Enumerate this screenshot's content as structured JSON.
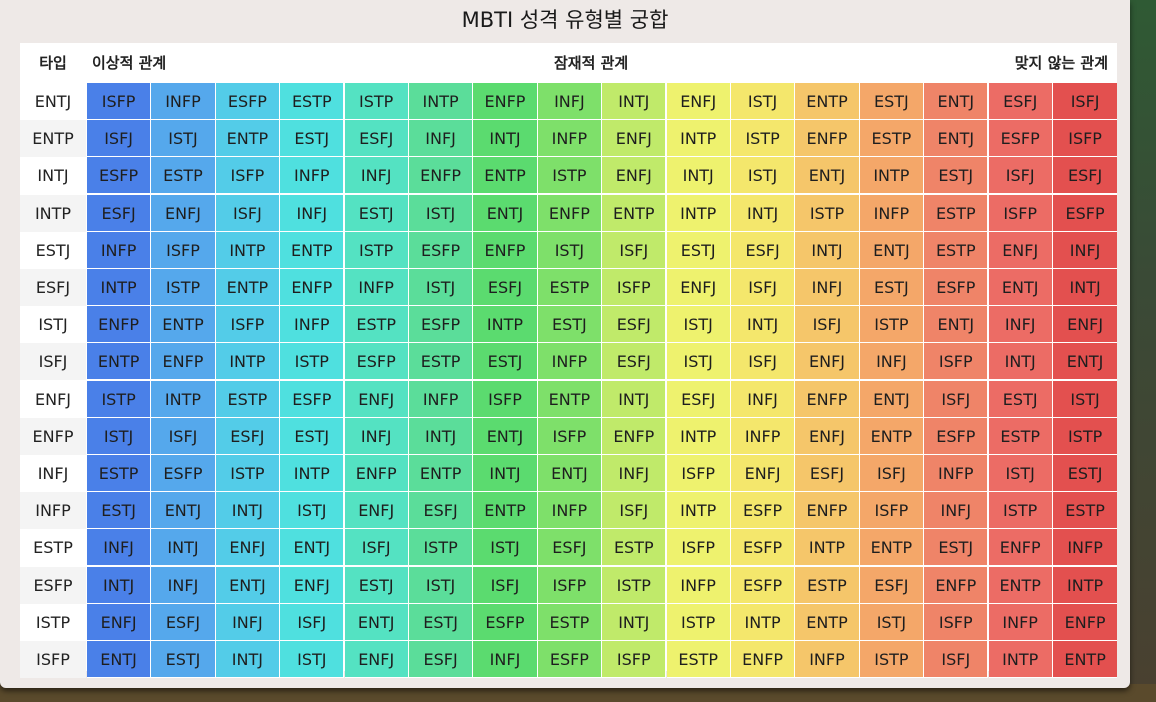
{
  "title": "MBTI 성격 유형별 궁합",
  "headers": {
    "type": "타입",
    "ideal": "이상적 관계",
    "potential": "잠재적 관계",
    "bad": "맞지 않는 관계"
  },
  "column_colors": [
    "#4a80e8",
    "#55a8ec",
    "#53cce8",
    "#4fe0df",
    "#54e2c2",
    "#5bdd9a",
    "#5bdb6f",
    "#7ee06a",
    "#c0ea6a",
    "#eef26e",
    "#f4e76c",
    "#f5c66a",
    "#f4a769",
    "#ef8468",
    "#ec6c65",
    "#e3504f"
  ],
  "rows": [
    {
      "type": "ENTJ",
      "cells": [
        "ISFP",
        "INFP",
        "ESFP",
        "ESTP",
        "ISTP",
        "INTP",
        "ENFP",
        "INFJ",
        "INTJ",
        "ENFJ",
        "ISTJ",
        "ENTP",
        "ESTJ",
        "ENTJ",
        "ESFJ",
        "ISFJ"
      ]
    },
    {
      "type": "ENTP",
      "cells": [
        "ISFJ",
        "ISTJ",
        "ENTP",
        "ESTJ",
        "ESFJ",
        "INFJ",
        "INTJ",
        "INFP",
        "ENFJ",
        "INTP",
        "ISTP",
        "ENFP",
        "ESTP",
        "ENTJ",
        "ESFP",
        "ISFP"
      ]
    },
    {
      "type": "INTJ",
      "cells": [
        "ESFP",
        "ESTP",
        "ISFP",
        "INFP",
        "INFJ",
        "ENFP",
        "ENTP",
        "ISTP",
        "ENFJ",
        "INTJ",
        "ISTJ",
        "ENTJ",
        "INTP",
        "ESTJ",
        "ISFJ",
        "ESFJ"
      ]
    },
    {
      "type": "INTP",
      "cells": [
        "ESFJ",
        "ENFJ",
        "ISFJ",
        "INFJ",
        "ESTJ",
        "ISTJ",
        "ENTJ",
        "ENFP",
        "ENTP",
        "INTP",
        "INTJ",
        "ISTP",
        "INFP",
        "ESTP",
        "ISFP",
        "ESFP"
      ]
    },
    {
      "type": "ESTJ",
      "cells": [
        "INFP",
        "ISFP",
        "INTP",
        "ENTP",
        "ISTP",
        "ESFP",
        "ENFP",
        "ISTJ",
        "ISFJ",
        "ESTJ",
        "ESFJ",
        "INTJ",
        "ENTJ",
        "ESTP",
        "ENFJ",
        "INFJ"
      ]
    },
    {
      "type": "ESFJ",
      "cells": [
        "INTP",
        "ISTP",
        "ENTP",
        "ENFP",
        "INFP",
        "ISTJ",
        "ESFJ",
        "ESTP",
        "ISFP",
        "ENFJ",
        "ISFJ",
        "INFJ",
        "ESTJ",
        "ESFP",
        "ENTJ",
        "INTJ"
      ]
    },
    {
      "type": "ISTJ",
      "cells": [
        "ENFP",
        "ENTP",
        "ISFP",
        "INFP",
        "ESTP",
        "ESFP",
        "INTP",
        "ESTJ",
        "ESFJ",
        "ISTJ",
        "INTJ",
        "ISFJ",
        "ISTP",
        "ENTJ",
        "INFJ",
        "ENFJ"
      ]
    },
    {
      "type": "ISFJ",
      "cells": [
        "ENTP",
        "ENFP",
        "INTP",
        "ISTP",
        "ESFP",
        "ESTP",
        "ESTJ",
        "INFP",
        "ESFJ",
        "ISTJ",
        "ISFJ",
        "ENFJ",
        "INFJ",
        "ISFP",
        "INTJ",
        "ENTJ"
      ]
    },
    {
      "type": "ENFJ",
      "cells": [
        "ISTP",
        "INTP",
        "ESTP",
        "ESFP",
        "ENFJ",
        "INFP",
        "ISFP",
        "ENTP",
        "INTJ",
        "ESFJ",
        "INFJ",
        "ENFP",
        "ENTJ",
        "ISFJ",
        "ESTJ",
        "ISTJ"
      ]
    },
    {
      "type": "ENFP",
      "cells": [
        "ISTJ",
        "ISFJ",
        "ESFJ",
        "ESTJ",
        "INFJ",
        "INTJ",
        "ENTJ",
        "ISFP",
        "ENFP",
        "INTP",
        "INFP",
        "ENFJ",
        "ENTP",
        "ESFP",
        "ESTP",
        "ISTP"
      ]
    },
    {
      "type": "INFJ",
      "cells": [
        "ESTP",
        "ESFP",
        "ISTP",
        "INTP",
        "ENFP",
        "ENTP",
        "INTJ",
        "ENTJ",
        "INFJ",
        "ISFP",
        "ENFJ",
        "ESFJ",
        "ISFJ",
        "INFP",
        "ISTJ",
        "ESTJ"
      ]
    },
    {
      "type": "INFP",
      "cells": [
        "ESTJ",
        "ENTJ",
        "INTJ",
        "ISTJ",
        "ENFJ",
        "ESFJ",
        "ENTP",
        "INFP",
        "ISFJ",
        "INTP",
        "ESFP",
        "ENFP",
        "ISFP",
        "INFJ",
        "ISTP",
        "ESTP"
      ]
    },
    {
      "type": "ESTP",
      "cells": [
        "INFJ",
        "INTJ",
        "ENFJ",
        "ENTJ",
        "ISFJ",
        "ISTP",
        "ISTJ",
        "ESFJ",
        "ESTP",
        "ISFP",
        "ESFP",
        "INTP",
        "ENTP",
        "ESTJ",
        "ENFP",
        "INFP"
      ]
    },
    {
      "type": "ESFP",
      "cells": [
        "INTJ",
        "INFJ",
        "ENTJ",
        "ENFJ",
        "ESTJ",
        "ISTJ",
        "ISFJ",
        "ISFP",
        "ISTP",
        "INFP",
        "ESFP",
        "ESTP",
        "ESFJ",
        "ENFP",
        "ENTP",
        "INTP"
      ]
    },
    {
      "type": "ISTP",
      "cells": [
        "ENFJ",
        "ESFJ",
        "INFJ",
        "ISFJ",
        "ENTJ",
        "ESTJ",
        "ESFP",
        "ESTP",
        "INTJ",
        "ISTP",
        "INTP",
        "ENTP",
        "ISTJ",
        "ISFP",
        "INFP",
        "ENFP"
      ]
    },
    {
      "type": "ISFP",
      "cells": [
        "ENTJ",
        "ESTJ",
        "INTJ",
        "ISTJ",
        "ENFJ",
        "ESFJ",
        "INFJ",
        "ESFP",
        "ISFP",
        "ESTP",
        "ENFP",
        "INFP",
        "ISTP",
        "ISFJ",
        "INTP",
        "ENTP"
      ]
    }
  ]
}
